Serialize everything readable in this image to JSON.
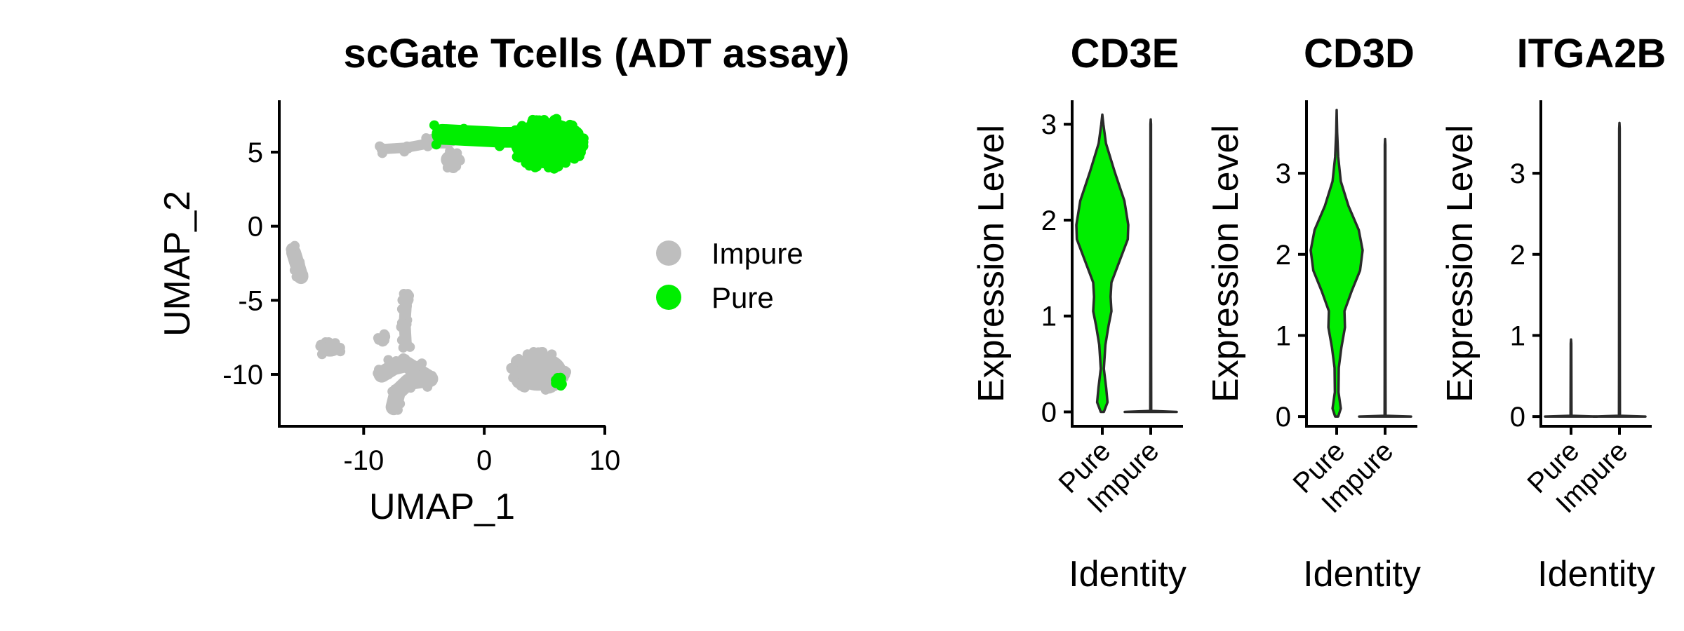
{
  "chart_data": [
    {
      "type": "scatter",
      "title": "scGate Tcells (ADT assay)",
      "xlabel": "UMAP_1",
      "ylabel": "UMAP_2",
      "xlim": [
        -17,
        10
      ],
      "ylim": [
        -13.5,
        8.5
      ],
      "xticks": [
        -10,
        0,
        10
      ],
      "yticks": [
        5,
        0,
        -5,
        -10
      ],
      "xtick_labels": [
        "-10",
        "0",
        "10"
      ],
      "ytick_labels": [
        "5",
        "0",
        "-5",
        "-10"
      ],
      "grid": false,
      "legend": {
        "position": "right",
        "entries": [
          {
            "label": "Impure",
            "color": "#bebebe"
          },
          {
            "label": "Pure",
            "color": "#00ee00"
          }
        ]
      },
      "clusters": [
        {
          "group": "Impure",
          "shape": "ellipse",
          "cx": 4.5,
          "cy": -9.8,
          "rx": 2.3,
          "ry": 1.3
        },
        {
          "group": "Impure",
          "shape": "curve",
          "points": [
            [
              -8.5,
              -10
            ],
            [
              -7.5,
              -9.5
            ],
            [
              -6.5,
              -9.3
            ],
            [
              -5.5,
              -9.8
            ],
            [
              -4.5,
              -10.3
            ],
            [
              -6.3,
              -10.5
            ],
            [
              -7.2,
              -11.2
            ],
            [
              -7.5,
              -12.2
            ]
          ],
          "width": 1.1
        },
        {
          "group": "Impure",
          "shape": "curve",
          "points": [
            [
              -6.5,
              -5.3
            ],
            [
              -6.6,
              -6.5
            ],
            [
              -6.5,
              -8
            ]
          ],
          "width": 0.8
        },
        {
          "group": "Impure",
          "shape": "curve",
          "points": [
            [
              -15.8,
              -1.8
            ],
            [
              -15.5,
              -2.6
            ],
            [
              -15.2,
              -3.4
            ]
          ],
          "width": 1.0
        },
        {
          "group": "Impure",
          "shape": "ellipse",
          "cx": -12.8,
          "cy": -8.3,
          "rx": 0.9,
          "ry": 0.5
        },
        {
          "group": "Impure",
          "shape": "ellipse",
          "cx": -8.5,
          "cy": -7.5,
          "rx": 0.3,
          "ry": 0.3
        },
        {
          "group": "Impure",
          "shape": "ellipse",
          "cx": -6.5,
          "cy": -4.8,
          "rx": 0.3,
          "ry": 0.3
        },
        {
          "group": "Impure",
          "shape": "curve",
          "points": [
            [
              -8.5,
              5.2
            ],
            [
              -6.5,
              5.3
            ],
            [
              -4.5,
              5.6
            ],
            [
              -3,
              5.6
            ]
          ],
          "width": 0.7
        },
        {
          "group": "Impure",
          "shape": "ellipse",
          "cx": -2.8,
          "cy": 4.5,
          "rx": 0.8,
          "ry": 0.6
        },
        {
          "group": "Pure",
          "shape": "ellipse",
          "cx": 5.2,
          "cy": 5.6,
          "rx": 3.0,
          "ry": 1.7
        },
        {
          "group": "Pure",
          "shape": "curve",
          "points": [
            [
              -3.5,
              6.2
            ],
            [
              -1,
              6.1
            ],
            [
              1.5,
              6.0
            ],
            [
              3.5,
              6.0
            ]
          ],
          "width": 1.4
        },
        {
          "group": "Pure",
          "shape": "ellipse",
          "cx": 6.2,
          "cy": -10.5,
          "rx": 0.3,
          "ry": 0.3
        }
      ]
    },
    {
      "type": "violin",
      "title": "CD3E",
      "xlabel": "Identity",
      "ylabel": "Expression Level",
      "categories": [
        "Pure",
        "Impure"
      ],
      "ylim": [
        -0.15,
        3.25
      ],
      "yticks": [
        0,
        1,
        2,
        3
      ],
      "ytick_labels": [
        "0",
        "1",
        "2",
        "3"
      ],
      "series": [
        {
          "category": "Pure",
          "color": "#00ee00",
          "ymax": 3.1,
          "profile": [
            [
              0,
              0.06
            ],
            [
              0.1,
              0.2
            ],
            [
              0.25,
              0.15
            ],
            [
              0.45,
              0.06
            ],
            [
              0.7,
              0.12
            ],
            [
              0.9,
              0.24
            ],
            [
              1.05,
              0.35
            ],
            [
              1.2,
              0.32
            ],
            [
              1.35,
              0.35
            ],
            [
              1.6,
              0.7
            ],
            [
              1.8,
              0.98
            ],
            [
              1.95,
              1.0
            ],
            [
              2.2,
              0.85
            ],
            [
              2.5,
              0.48
            ],
            [
              2.8,
              0.14
            ],
            [
              3.0,
              0.04
            ],
            [
              3.1,
              0.0
            ]
          ]
        },
        {
          "category": "Impure",
          "color": "#00ee00",
          "ymax": 3.05,
          "profile": [
            [
              0,
              1.0
            ],
            [
              0.01,
              0.02
            ],
            [
              0.5,
              0.015
            ],
            [
              3.0,
              0.01
            ],
            [
              3.05,
              0.0
            ]
          ]
        }
      ]
    },
    {
      "type": "violin",
      "title": "CD3D",
      "xlabel": "Identity",
      "ylabel": "Expression Level",
      "categories": [
        "Pure",
        "Impure"
      ],
      "ylim": [
        -0.12,
        3.9
      ],
      "yticks": [
        0,
        1,
        2,
        3
      ],
      "ytick_labels": [
        "0",
        "1",
        "2",
        "3"
      ],
      "series": [
        {
          "category": "Pure",
          "color": "#00ee00",
          "ymax": 3.78,
          "profile": [
            [
              0,
              0.06
            ],
            [
              0.1,
              0.16
            ],
            [
              0.3,
              0.07
            ],
            [
              0.6,
              0.08
            ],
            [
              0.85,
              0.18
            ],
            [
              1.1,
              0.32
            ],
            [
              1.3,
              0.3
            ],
            [
              1.55,
              0.58
            ],
            [
              1.8,
              0.9
            ],
            [
              2.05,
              1.0
            ],
            [
              2.3,
              0.85
            ],
            [
              2.6,
              0.45
            ],
            [
              2.9,
              0.16
            ],
            [
              3.2,
              0.06
            ],
            [
              3.5,
              0.02
            ],
            [
              3.78,
              0.0
            ]
          ]
        },
        {
          "category": "Impure",
          "color": "#00ee00",
          "ymax": 3.42,
          "profile": [
            [
              0,
              1.0
            ],
            [
              0.01,
              0.02
            ],
            [
              0.5,
              0.015
            ],
            [
              3.35,
              0.01
            ],
            [
              3.42,
              0.0
            ]
          ]
        }
      ]
    },
    {
      "type": "violin",
      "title": "ITGA2B",
      "xlabel": "Identity",
      "ylabel": "Expression Level",
      "categories": [
        "Pure",
        "Impure"
      ],
      "ylim": [
        -0.12,
        3.9
      ],
      "yticks": [
        0,
        1,
        2,
        3
      ],
      "ytick_labels": [
        "0",
        "1",
        "2",
        "3"
      ],
      "series": [
        {
          "category": "Pure",
          "color": "#00ee00",
          "ymax": 0.95,
          "profile": [
            [
              0,
              1.0
            ],
            [
              0.01,
              0.02
            ],
            [
              0.3,
              0.015
            ],
            [
              0.9,
              0.01
            ],
            [
              0.95,
              0.0
            ]
          ]
        },
        {
          "category": "Impure",
          "color": "#00ee00",
          "ymax": 3.62,
          "profile": [
            [
              0,
              1.0
            ],
            [
              0.01,
              0.02
            ],
            [
              0.5,
              0.015
            ],
            [
              3.55,
              0.01
            ],
            [
              3.62,
              0.0
            ]
          ]
        }
      ]
    }
  ]
}
